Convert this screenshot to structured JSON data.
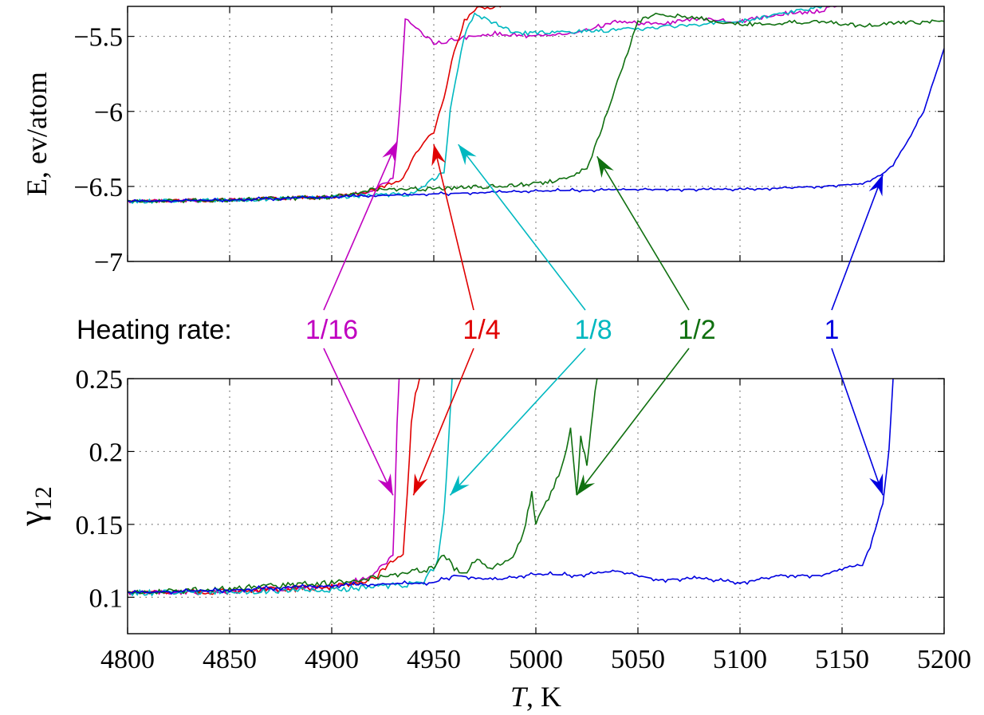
{
  "chart_data": [
    {
      "type": "line",
      "panel": "top",
      "ylabel": "E, ev/atom",
      "xlim": [
        4800,
        5200
      ],
      "ylim": [
        -7,
        -5.3
      ],
      "yticks": [
        "−5.5",
        "−6",
        "−6.5",
        "−7"
      ],
      "ytick_values": [
        -5.5,
        -6,
        -6.5,
        -7
      ],
      "grid": true,
      "series": [
        {
          "name": "1/16",
          "color": "#c000c0",
          "x": [
            4800,
            4850,
            4900,
            4920,
            4930,
            4932,
            4934,
            4936,
            4940,
            4950,
            4960,
            4980,
            5000,
            5020,
            5040,
            5060,
            5080,
            5100,
            5120,
            5140,
            5150
          ],
          "y": [
            -6.6,
            -6.59,
            -6.57,
            -6.53,
            -6.45,
            -6.2,
            -5.85,
            -5.38,
            -5.42,
            -5.55,
            -5.52,
            -5.48,
            -5.5,
            -5.47,
            -5.4,
            -5.42,
            -5.38,
            -5.4,
            -5.35,
            -5.33,
            -5.28
          ]
        },
        {
          "name": "1/4",
          "color": "#e00000",
          "x": [
            4800,
            4850,
            4900,
            4920,
            4935,
            4940,
            4945,
            4950,
            4955,
            4960,
            4965,
            4970,
            4980,
            4990,
            5000,
            5005
          ],
          "y": [
            -6.6,
            -6.59,
            -6.57,
            -6.53,
            -6.45,
            -6.3,
            -6.2,
            -6.15,
            -5.9,
            -5.6,
            -5.4,
            -5.32,
            -5.3,
            -5.28,
            -5.27,
            -5.26
          ]
        },
        {
          "name": "1/8",
          "color": "#00b8c0",
          "x": [
            4800,
            4850,
            4900,
            4940,
            4955,
            4958,
            4962,
            4966,
            4970,
            4990,
            5020,
            5050,
            5080,
            5100,
            5130,
            5150
          ],
          "y": [
            -6.6,
            -6.59,
            -6.57,
            -6.55,
            -6.4,
            -6.0,
            -5.7,
            -5.45,
            -5.35,
            -5.48,
            -5.47,
            -5.45,
            -5.42,
            -5.4,
            -5.33,
            -5.27
          ]
        },
        {
          "name": "1/2",
          "color": "#107010",
          "x": [
            4800,
            4850,
            4900,
            4920,
            4940,
            4960,
            4980,
            5000,
            5015,
            5025,
            5030,
            5035,
            5040,
            5045,
            5050,
            5060,
            5080,
            5100,
            5140,
            5160,
            5180,
            5200
          ],
          "y": [
            -6.6,
            -6.59,
            -6.57,
            -6.52,
            -6.52,
            -6.51,
            -6.5,
            -6.48,
            -6.45,
            -6.38,
            -6.2,
            -6.0,
            -5.8,
            -5.6,
            -5.4,
            -5.35,
            -5.38,
            -5.42,
            -5.4,
            -5.43,
            -5.41,
            -5.4
          ]
        },
        {
          "name": "1",
          "color": "#0000e0",
          "x": [
            4800,
            4850,
            4900,
            4950,
            5000,
            5050,
            5100,
            5140,
            5160,
            5170,
            5175,
            5180,
            5190,
            5200
          ],
          "y": [
            -6.6,
            -6.59,
            -6.57,
            -6.55,
            -6.53,
            -6.52,
            -6.52,
            -6.5,
            -6.48,
            -6.42,
            -6.35,
            -6.25,
            -6.0,
            -5.58
          ]
        }
      ]
    },
    {
      "type": "line",
      "panel": "bottom",
      "ylabel": "γ12",
      "ylabel_main": "γ",
      "ylabel_sub": "12",
      "xlabel": "T, K",
      "xlabel_var": "T",
      "xlabel_unit": ", K",
      "xlim": [
        4800,
        5200
      ],
      "ylim": [
        0.075,
        0.25
      ],
      "xticks": [
        "4800",
        "4850",
        "4900",
        "4950",
        "5000",
        "5050",
        "5100",
        "5150",
        "5200"
      ],
      "xtick_values": [
        4800,
        4850,
        4900,
        4950,
        5000,
        5050,
        5100,
        5150,
        5200
      ],
      "yticks": [
        "0.25",
        "0.2",
        "0.15",
        "0.1"
      ],
      "ytick_values": [
        0.25,
        0.2,
        0.15,
        0.1
      ],
      "grid": true,
      "series": [
        {
          "name": "1/16",
          "color": "#c000c0",
          "x": [
            4800,
            4850,
            4900,
            4920,
            4928,
            4930,
            4931,
            4932,
            4933
          ],
          "y": [
            0.103,
            0.104,
            0.107,
            0.115,
            0.125,
            0.13,
            0.17,
            0.22,
            0.25
          ]
        },
        {
          "name": "1/4",
          "color": "#e00000",
          "x": [
            4800,
            4850,
            4900,
            4920,
            4930,
            4935,
            4937,
            4939,
            4941,
            4943
          ],
          "y": [
            0.103,
            0.104,
            0.107,
            0.112,
            0.125,
            0.13,
            0.17,
            0.22,
            0.24,
            0.25
          ]
        },
        {
          "name": "1/8",
          "color": "#00b8c0",
          "x": [
            4800,
            4850,
            4900,
            4930,
            4945,
            4952,
            4955,
            4957,
            4959
          ],
          "y": [
            0.103,
            0.104,
            0.105,
            0.108,
            0.11,
            0.125,
            0.16,
            0.2,
            0.25
          ]
        },
        {
          "name": "1/2",
          "color": "#107010",
          "x": [
            4800,
            4850,
            4900,
            4930,
            4950,
            4955,
            4960,
            4965,
            4970,
            4980,
            4990,
            4995,
            4998,
            5000,
            5005,
            5010,
            5015,
            5017,
            5020,
            5022,
            5025,
            5028,
            5030
          ],
          "y": [
            0.103,
            0.106,
            0.11,
            0.115,
            0.12,
            0.13,
            0.12,
            0.115,
            0.125,
            0.12,
            0.13,
            0.15,
            0.173,
            0.15,
            0.165,
            0.18,
            0.2,
            0.215,
            0.17,
            0.21,
            0.19,
            0.23,
            0.25
          ]
        },
        {
          "name": "1",
          "color": "#0000e0",
          "x": [
            4800,
            4850,
            4900,
            4950,
            4960,
            4980,
            5000,
            5020,
            5040,
            5060,
            5080,
            5100,
            5120,
            5140,
            5150,
            5160,
            5165,
            5170,
            5173,
            5175
          ],
          "y": [
            0.103,
            0.105,
            0.108,
            0.11,
            0.115,
            0.112,
            0.116,
            0.115,
            0.118,
            0.112,
            0.113,
            0.11,
            0.115,
            0.115,
            0.12,
            0.122,
            0.14,
            0.165,
            0.2,
            0.25
          ]
        }
      ]
    }
  ],
  "annotation": {
    "prefix": "Heating rate:",
    "labels": [
      {
        "text": "1/16",
        "color": "#c000c0",
        "top_point": [
          4932,
          -6.2
        ],
        "bottom_point": [
          4930,
          0.17
        ]
      },
      {
        "text": "1/4",
        "color": "#e00000",
        "top_point": [
          4950,
          -6.22
        ],
        "bottom_point": [
          4940,
          0.17
        ]
      },
      {
        "text": "1/8",
        "color": "#00b8c0",
        "top_point": [
          4962,
          -6.22
        ],
        "bottom_point": [
          4958,
          0.17
        ]
      },
      {
        "text": "1/2",
        "color": "#107010",
        "top_point": [
          5030,
          -6.3
        ],
        "bottom_point": [
          5020,
          0.17
        ]
      },
      {
        "text": "1",
        "color": "#0000e0",
        "top_point": [
          5170,
          -6.42
        ],
        "bottom_point": [
          5170,
          0.17
        ]
      }
    ]
  }
}
